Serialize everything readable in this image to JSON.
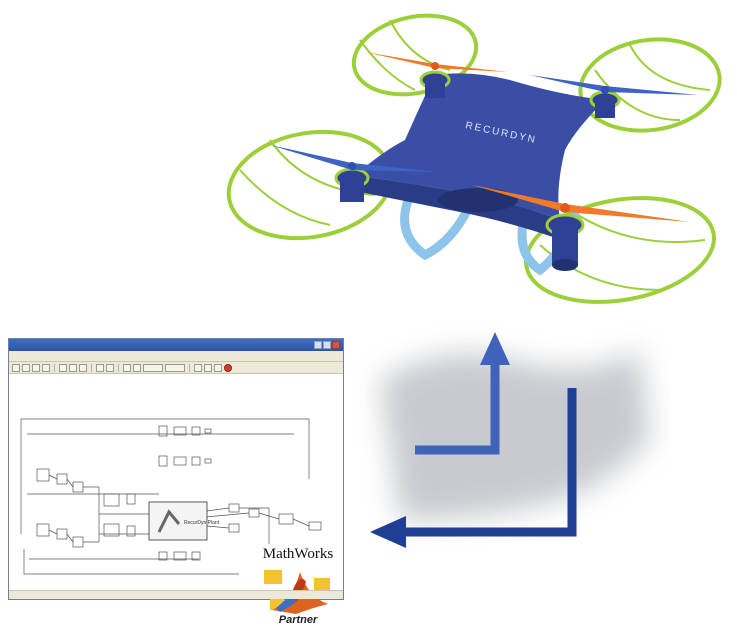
{
  "drone": {
    "brand_text": "RECURDYN",
    "colors": {
      "body": "#3a4ea6",
      "guard": "#9ccf3a",
      "prop_orange": "#f07a2a",
      "prop_blue": "#3d63c4",
      "leg": "#8ec4ea"
    }
  },
  "window": {
    "title": "",
    "menu_items": [],
    "status_left": "",
    "status_mid": "",
    "status_right": ""
  },
  "diagram": {
    "central_block_label": "RecurDyn Plant"
  },
  "logo": {
    "mathworks_text": "MathWorks",
    "partner_text": "Partner"
  },
  "arrows": {
    "colors": {
      "up_arrow": "#3f63b9",
      "left_arrow": "#1f3f94"
    }
  }
}
